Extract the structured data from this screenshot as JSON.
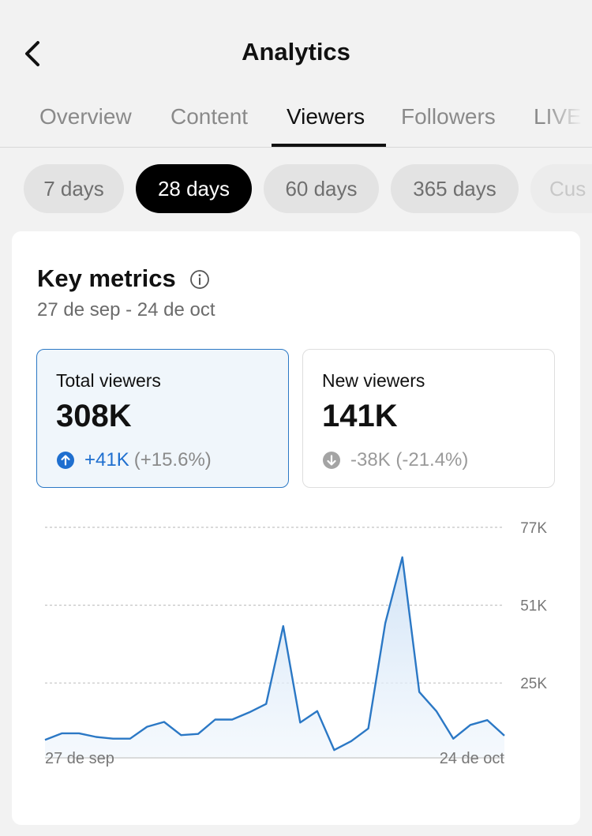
{
  "header": {
    "title": "Analytics",
    "back_icon": "chevron-left-icon"
  },
  "tabs": [
    {
      "label": "Overview",
      "active": false
    },
    {
      "label": "Content",
      "active": false
    },
    {
      "label": "Viewers",
      "active": true
    },
    {
      "label": "Followers",
      "active": false
    },
    {
      "label": "LIVE",
      "active": false
    }
  ],
  "ranges": [
    {
      "label": "7 days",
      "active": false
    },
    {
      "label": "28 days",
      "active": true
    },
    {
      "label": "60 days",
      "active": false
    },
    {
      "label": "365 days",
      "active": false
    },
    {
      "label": "Cus",
      "active": false
    }
  ],
  "key_metrics": {
    "title": "Key metrics",
    "info_icon": "info-icon",
    "date_range": "27 de sep - 24 de oct",
    "cards": [
      {
        "label": "Total viewers",
        "value": "308K",
        "change": "+41K",
        "change_pct": "(+15.6%)",
        "direction": "up",
        "icon": "arrow-up-circle-icon",
        "selected": true
      },
      {
        "label": "New viewers",
        "value": "141K",
        "change": "-38K (-21.4%)",
        "change_pct": "",
        "direction": "down",
        "icon": "arrow-down-circle-icon",
        "selected": false
      }
    ]
  },
  "chart_data": {
    "type": "area",
    "y_ticks": [
      "77K",
      "51K",
      "25K"
    ],
    "y_tick_values": [
      77000,
      51000,
      25000
    ],
    "ylim": [
      0,
      77000
    ],
    "x_labels": [
      "27 de sep",
      "24 de oct"
    ],
    "grid": true,
    "line_color": "#2b78c5",
    "fill_color": "#dbe9f7",
    "values": [
      6000,
      8200,
      8200,
      7000,
      6400,
      6400,
      10400,
      12000,
      7600,
      8000,
      12800,
      12800,
      15200,
      18000,
      44000,
      11800,
      15600,
      2600,
      5600,
      9800,
      45000,
      67000,
      22000,
      15600,
      6400,
      11000,
      12600,
      7400
    ]
  }
}
